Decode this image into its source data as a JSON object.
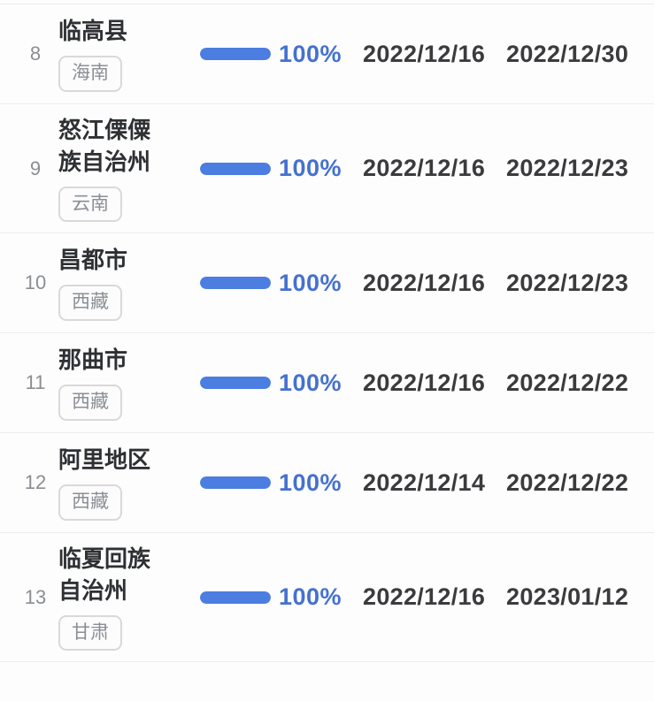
{
  "colors": {
    "bar_blue": "#4c7de0",
    "percent_blue": "#4571cf",
    "name_dark": "#2e3033",
    "date_dark": "#3b3b3e",
    "rank_gray": "#8b8e92",
    "tag_gray": "#8a8f96",
    "tag_border": "#d9d9d9",
    "divider": "#ededed"
  },
  "table": {
    "rows": [
      {
        "rank": "8",
        "region": "临高县",
        "province": "海南",
        "progress": 100,
        "percent": "100%",
        "date_start": "2022/12/16",
        "date_end": "2022/12/30"
      },
      {
        "rank": "9",
        "region": "怒江傈僳族自治州",
        "province": "云南",
        "progress": 100,
        "percent": "100%",
        "date_start": "2022/12/16",
        "date_end": "2022/12/23"
      },
      {
        "rank": "10",
        "region": "昌都市",
        "province": "西藏",
        "progress": 100,
        "percent": "100%",
        "date_start": "2022/12/16",
        "date_end": "2022/12/23"
      },
      {
        "rank": "11",
        "region": "那曲市",
        "province": "西藏",
        "progress": 100,
        "percent": "100%",
        "date_start": "2022/12/16",
        "date_end": "2022/12/22"
      },
      {
        "rank": "12",
        "region": "阿里地区",
        "province": "西藏",
        "progress": 100,
        "percent": "100%",
        "date_start": "2022/12/14",
        "date_end": "2022/12/22"
      },
      {
        "rank": "13",
        "region": "临夏回族自治州",
        "province": "甘肃",
        "progress": 100,
        "percent": "100%",
        "date_start": "2022/12/16",
        "date_end": "2023/01/12"
      }
    ]
  }
}
